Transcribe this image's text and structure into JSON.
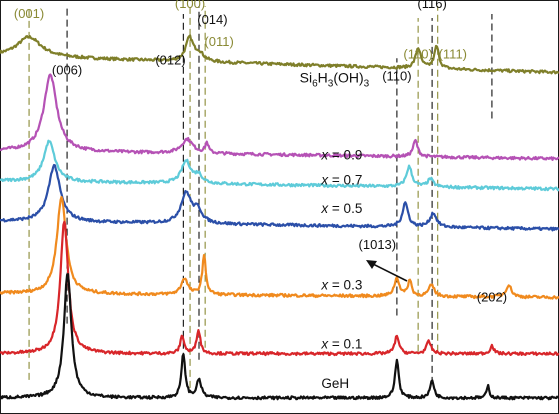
{
  "chart_data": {
    "type": "line",
    "title": "",
    "xlabel": "",
    "ylabel": "",
    "x_range": [
      0,
      100
    ],
    "grid": false,
    "legend": "none",
    "peak_labels": [
      {
        "text": "(001)",
        "x": 5.2,
        "tone": "olive"
      },
      {
        "text": "(006)",
        "x": 12.0,
        "tone": "black"
      },
      {
        "text": "(012)",
        "x": 30.5,
        "tone": "black"
      },
      {
        "text": "(100)",
        "x": 34.0,
        "tone": "olive"
      },
      {
        "text": "(014)",
        "x": 38.0,
        "tone": "black"
      },
      {
        "text": "(011)",
        "x": 39.2,
        "tone": "olive"
      },
      {
        "text": "(110)",
        "x": 71.0,
        "tone": "black"
      },
      {
        "text": "(110)",
        "x": 74.8,
        "tone": "olive"
      },
      {
        "text": "(116)",
        "x": 77.3,
        "tone": "black"
      },
      {
        "text": "(111)",
        "x": 81.0,
        "tone": "olive"
      },
      {
        "text": "(1013)",
        "x": 67.5,
        "tone": "black"
      },
      {
        "text": "(202)",
        "x": 88.0,
        "tone": "black"
      }
    ],
    "reference_lines": [
      {
        "x": 5.2,
        "tone": "olive",
        "y_from": 0.07,
        "y_to": 1.0
      },
      {
        "x": 12.0,
        "tone": "black",
        "y_from": 0.21,
        "y_to": 1.0
      },
      {
        "x": 32.8,
        "tone": "black",
        "y_from": 0.12,
        "y_to": 0.98
      },
      {
        "x": 34.0,
        "tone": "olive",
        "y_from": 0.05,
        "y_to": 1.0
      },
      {
        "x": 35.6,
        "tone": "black",
        "y_from": 0.12,
        "y_to": 1.0
      },
      {
        "x": 36.7,
        "tone": "olive",
        "y_from": 0.15,
        "y_to": 1.0
      },
      {
        "x": 71.0,
        "tone": "black",
        "y_from": 0.23,
        "y_to": 0.87
      },
      {
        "x": 74.8,
        "tone": "olive",
        "y_from": 0.14,
        "y_to": 0.97
      },
      {
        "x": 77.3,
        "tone": "black",
        "y_from": 0.06,
        "y_to": 0.97
      },
      {
        "x": 78.3,
        "tone": "olive",
        "y_from": 0.14,
        "y_to": 1.0
      },
      {
        "x": 88.0,
        "tone": "black",
        "y_from": 0.72,
        "y_to": 0.98
      }
    ],
    "series": [
      {
        "name": "Si6H3(OH)3",
        "color": "#7f7f2a",
        "offset": 0.855,
        "baseline": 0.02,
        "slope": -0.0004,
        "peaks": [
          [
            5.2,
            0.05,
            2.6
          ],
          [
            33.9,
            0.057,
            0.8
          ],
          [
            35.6,
            0.02,
            1.0
          ],
          [
            74.8,
            0.05,
            0.55
          ],
          [
            78.1,
            0.055,
            0.5
          ]
        ]
      },
      {
        "name": "x = 0.9",
        "color": "#b552b5",
        "offset": 0.64,
        "baseline": 0.0,
        "slope": -0.0002,
        "peaks": [
          [
            9.0,
            0.19,
            1.4
          ],
          [
            33.5,
            0.035,
            1.2
          ],
          [
            37.0,
            0.025,
            0.35
          ],
          [
            74.3,
            0.04,
            0.5
          ]
        ]
      },
      {
        "name": "x = 0.7",
        "color": "#5ecbd9",
        "offset": 0.565,
        "baseline": 0.0,
        "slope": -0.0002,
        "peaks": [
          [
            8.8,
            0.1,
            1.2
          ],
          [
            33.3,
            0.055,
            1.0
          ],
          [
            35.5,
            0.02,
            0.8
          ],
          [
            73.2,
            0.05,
            0.6
          ],
          [
            77.0,
            0.02,
            0.6
          ]
        ]
      },
      {
        "name": "x = 0.5",
        "color": "#2b4fa8",
        "offset": 0.465,
        "baseline": 0.0,
        "slope": -0.0002,
        "peaks": [
          [
            9.7,
            0.14,
            1.25
          ],
          [
            33.3,
            0.075,
            1.1
          ],
          [
            35.4,
            0.03,
            0.9
          ],
          [
            72.5,
            0.06,
            0.6
          ],
          [
            77.5,
            0.035,
            0.7
          ]
        ]
      },
      {
        "name": "x = 0.3",
        "color": "#f08a1e",
        "offset": 0.285,
        "baseline": 0.0,
        "slope": -0.0001,
        "peaks": [
          [
            11.0,
            0.24,
            1.0
          ],
          [
            33.0,
            0.04,
            0.7
          ],
          [
            36.5,
            0.095,
            0.4
          ],
          [
            71.0,
            0.045,
            0.55
          ],
          [
            73.3,
            0.04,
            0.4
          ],
          [
            77.2,
            0.028,
            0.6
          ],
          [
            91.0,
            0.03,
            0.6
          ]
        ]
      },
      {
        "name": "x = 0.1",
        "color": "#d8262a",
        "offset": 0.135,
        "baseline": 0.0,
        "slope": 0.0,
        "peaks": [
          [
            11.5,
            0.33,
            0.85
          ],
          [
            32.6,
            0.045,
            0.4
          ],
          [
            35.5,
            0.06,
            0.4
          ],
          [
            71.0,
            0.045,
            0.45
          ],
          [
            76.7,
            0.03,
            0.5
          ],
          [
            88.0,
            0.02,
            0.4
          ]
        ]
      },
      {
        "name": "GeH",
        "color": "#111111",
        "offset": 0.025,
        "baseline": 0.0,
        "slope": 0.0,
        "peaks": [
          [
            12.1,
            0.31,
            0.8
          ],
          [
            32.8,
            0.11,
            0.4
          ],
          [
            35.6,
            0.045,
            0.5
          ],
          [
            71.0,
            0.095,
            0.4
          ],
          [
            77.3,
            0.045,
            0.4
          ],
          [
            87.3,
            0.03,
            0.3
          ]
        ]
      }
    ],
    "series_labels": [
      {
        "text": "x = 0.9",
        "x": 57.5,
        "y": 0.618
      },
      {
        "text": "x = 0.7",
        "x": 57.5,
        "y": 0.556
      },
      {
        "text": "x = 0.5",
        "x": 57.5,
        "y": 0.485
      },
      {
        "text": "x = 0.3",
        "x": 57.5,
        "y": 0.295
      },
      {
        "text": "x = 0.1",
        "x": 57.5,
        "y": 0.148
      },
      {
        "text": "GeH",
        "x": 57.5,
        "y": 0.05
      }
    ],
    "compound_label": {
      "prefix": "Si",
      "sub1": "6",
      "mid": "H",
      "sub2": "3",
      "tail": "(OH)",
      "sub3": "3",
      "x": 53.6,
      "y": 0.81
    }
  }
}
